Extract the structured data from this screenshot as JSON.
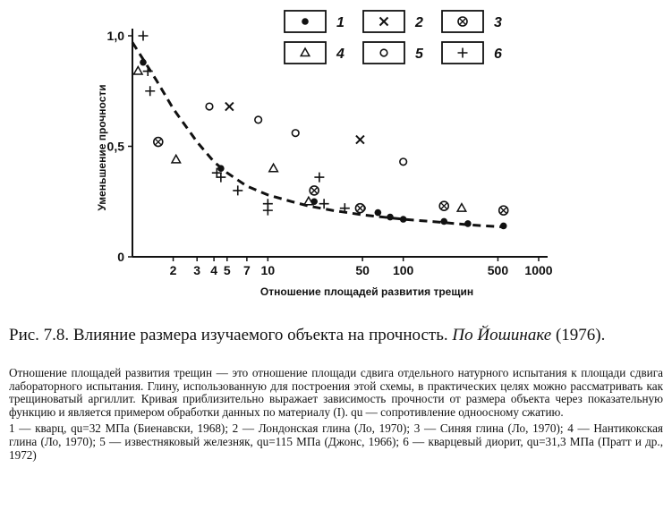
{
  "chart_data": {
    "type": "scatter",
    "ylabel": "Уменьшение прочности",
    "xlabel": "Отношение площадей развития трещин",
    "x_scale": "log",
    "xlim": [
      1,
      1000
    ],
    "ylim": [
      0,
      1.0
    ],
    "x_ticks": [
      {
        "value": 2,
        "label": "2"
      },
      {
        "value": 3,
        "label": "3"
      },
      {
        "value": 4,
        "label": "4"
      },
      {
        "value": 5,
        "label": "5"
      },
      {
        "value": 7,
        "label": "7"
      },
      {
        "value": 10,
        "label": "10"
      },
      {
        "value": 50,
        "label": "50"
      },
      {
        "value": 100,
        "label": "100"
      },
      {
        "value": 500,
        "label": "500"
      },
      {
        "value": 1000,
        "label": "1000"
      }
    ],
    "y_ticks": [
      {
        "value": 0,
        "label": "0"
      },
      {
        "value": 0.5,
        "label": "0,5"
      },
      {
        "value": 1.0,
        "label": "1,0"
      }
    ],
    "legend_position": "top-right",
    "legend": [
      {
        "id": 1,
        "label": "1",
        "marker": "filled-circle"
      },
      {
        "id": 2,
        "label": "2",
        "marker": "cross-x"
      },
      {
        "id": 3,
        "label": "3",
        "marker": "circled-x"
      },
      {
        "id": 4,
        "label": "4",
        "marker": "triangle"
      },
      {
        "id": 5,
        "label": "5",
        "marker": "open-circle"
      },
      {
        "id": 6,
        "label": "6",
        "marker": "plus"
      }
    ],
    "series": [
      {
        "id": 1,
        "marker": "filled-circle",
        "points": [
          [
            1.2,
            0.88
          ],
          [
            4.5,
            0.4
          ],
          [
            22,
            0.25
          ],
          [
            50,
            0.22
          ],
          [
            65,
            0.2
          ],
          [
            80,
            0.18
          ],
          [
            100,
            0.17
          ],
          [
            200,
            0.16
          ],
          [
            300,
            0.15
          ],
          [
            550,
            0.14
          ]
        ]
      },
      {
        "id": 2,
        "marker": "cross-x",
        "points": [
          [
            5.2,
            0.68
          ],
          [
            48,
            0.53
          ]
        ]
      },
      {
        "id": 3,
        "marker": "circled-x",
        "points": [
          [
            1.55,
            0.52
          ],
          [
            22,
            0.3
          ],
          [
            48,
            0.22
          ],
          [
            200,
            0.23
          ],
          [
            550,
            0.21
          ]
        ]
      },
      {
        "id": 4,
        "marker": "triangle",
        "points": [
          [
            1.1,
            0.84
          ],
          [
            2.1,
            0.44
          ],
          [
            11,
            0.4
          ],
          [
            20,
            0.25
          ],
          [
            270,
            0.22
          ]
        ]
      },
      {
        "id": 5,
        "marker": "open-circle",
        "points": [
          [
            3.7,
            0.68
          ],
          [
            8.5,
            0.62
          ],
          [
            16,
            0.56
          ],
          [
            100,
            0.43
          ]
        ]
      },
      {
        "id": 6,
        "marker": "plus",
        "points": [
          [
            1.2,
            1.0
          ],
          [
            1.3,
            0.84
          ],
          [
            1.35,
            0.75
          ],
          [
            4.2,
            0.38
          ],
          [
            4.5,
            0.36
          ],
          [
            6.0,
            0.3
          ],
          [
            10,
            0.24
          ],
          [
            10,
            0.21
          ],
          [
            24,
            0.36
          ],
          [
            26,
            0.24
          ],
          [
            37,
            0.22
          ]
        ]
      }
    ],
    "fit_curve": {
      "style": "dashed",
      "points": [
        [
          1,
          0.97
        ],
        [
          1.5,
          0.8
        ],
        [
          2,
          0.67
        ],
        [
          3,
          0.52
        ],
        [
          4,
          0.43
        ],
        [
          5,
          0.38
        ],
        [
          7,
          0.32
        ],
        [
          10,
          0.28
        ],
        [
          15,
          0.25
        ],
        [
          20,
          0.23
        ],
        [
          30,
          0.21
        ],
        [
          50,
          0.19
        ],
        [
          100,
          0.17
        ],
        [
          200,
          0.155
        ],
        [
          300,
          0.145
        ],
        [
          550,
          0.135
        ]
      ]
    }
  },
  "caption": {
    "prefix": "Рис. 7.8. Влияние размера изучаемого объекта на прочность.",
    "author": "По Йошинаке",
    "year": "(1976)."
  },
  "note": {
    "paragraph": "Отношение площадей развития трещин — это отношение площади сдвига отдельного натурного испытания к площади сдвига лабораторного испытания. Глину, использованную для построения этой схемы, в практических целях можно рассматривать как трещиноватый аргиллит. Кривая приблизительно выражает зависимость прочности от размера объекта через показательную функцию и является примером обработки данных по материалу (I). qu — сопротивление одноосному сжатию.",
    "legend_text": "1 — кварц, qu=32 МПа (Биенавски, 1968); 2 — Лондонская глина (Ло, 1970); 3 — Синяя глина (Ло, 1970); 4 — Нантикокская глина (Ло, 1970); 5 — известняковый железняк, qu=115 МПа (Джонс, 1966); 6 — кварцевый диорит, qu=31,3 МПа (Пратт и др., 1972)"
  }
}
